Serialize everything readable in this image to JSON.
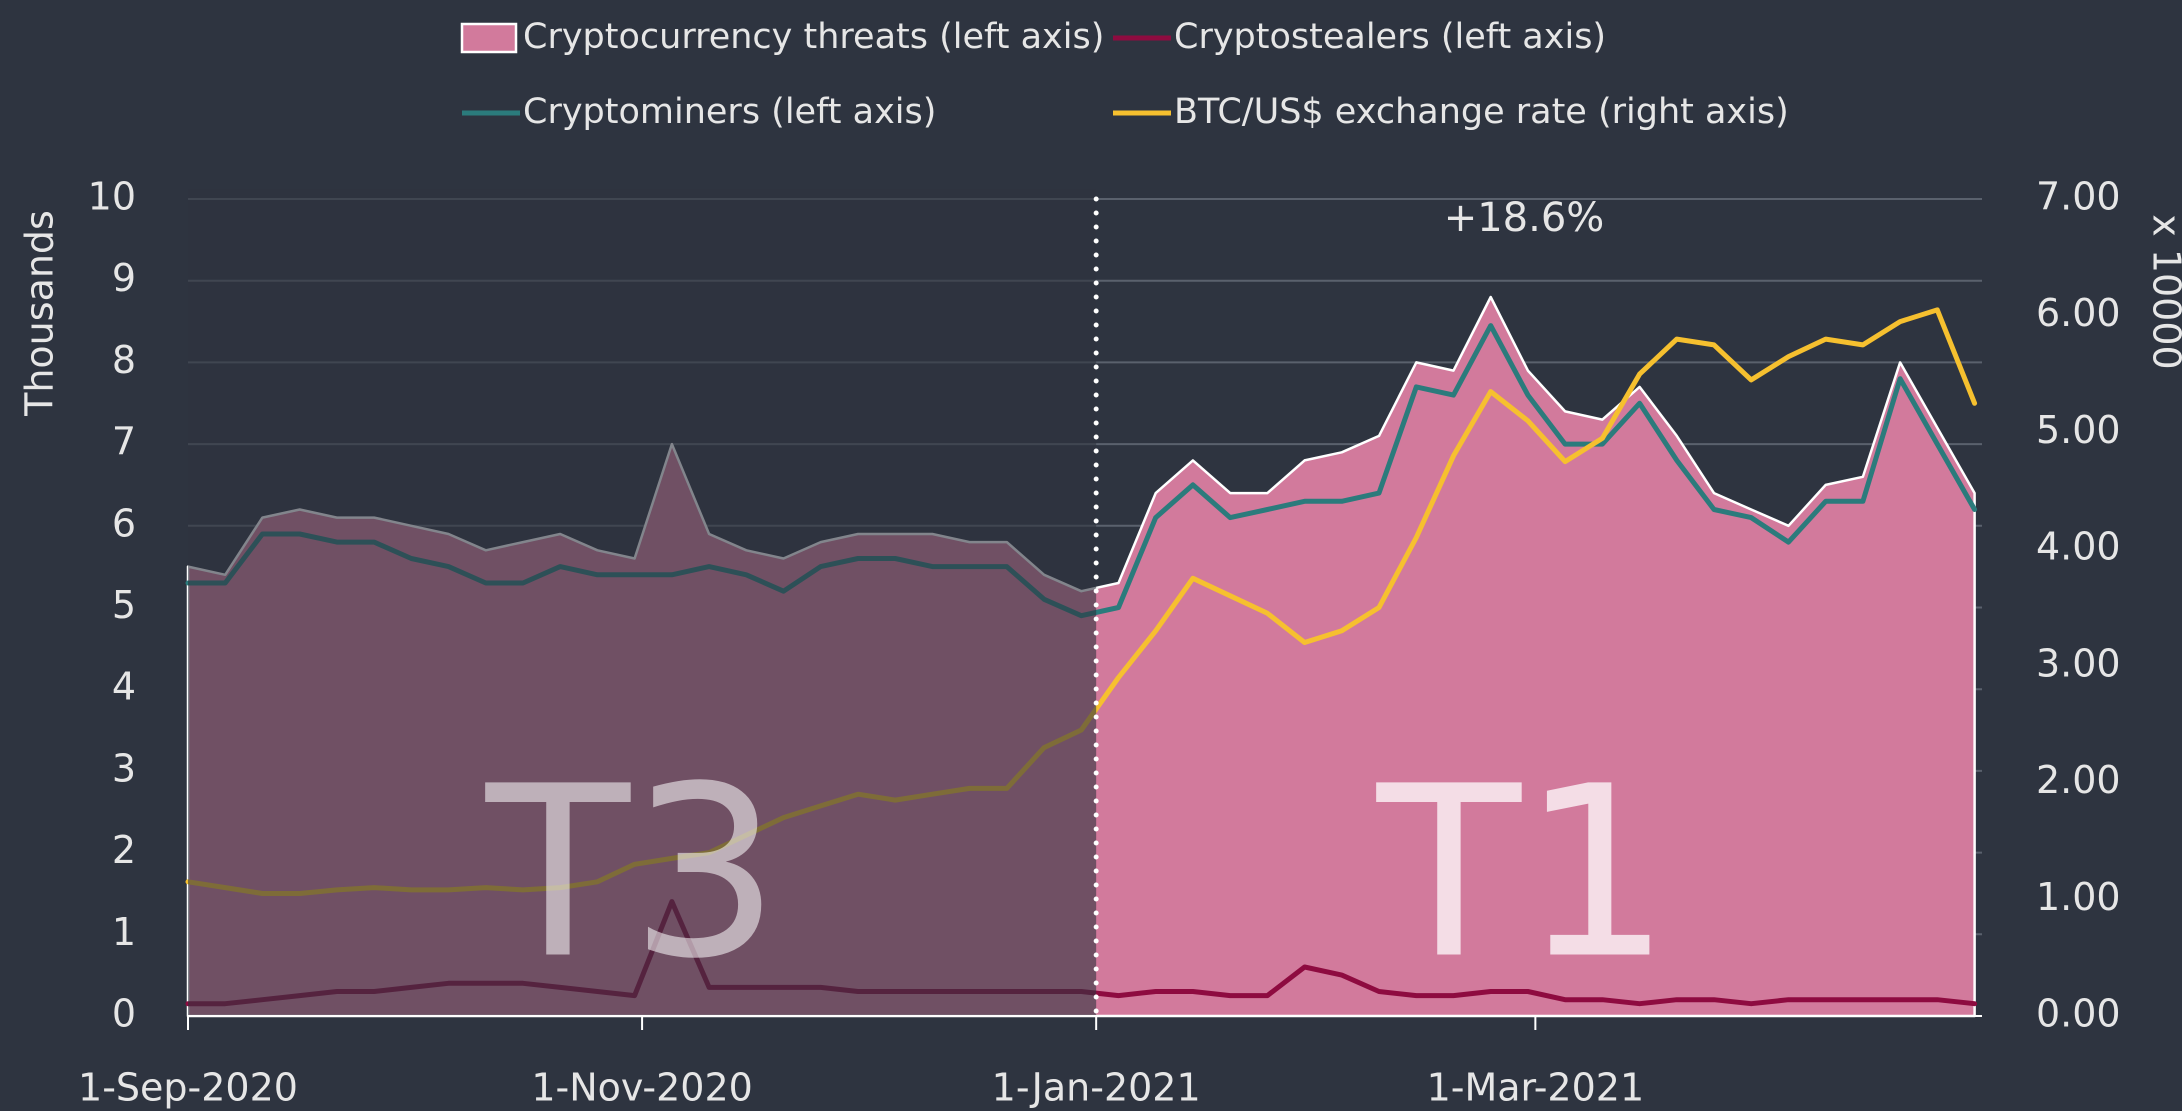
{
  "chart_data": {
    "type": "line",
    "x": [
      "2020-09-01",
      "2020-09-06",
      "2020-09-11",
      "2020-09-16",
      "2020-09-21",
      "2020-09-26",
      "2020-10-01",
      "2020-10-06",
      "2020-10-11",
      "2020-10-16",
      "2020-10-21",
      "2020-10-26",
      "2020-10-31",
      "2020-11-05",
      "2020-11-10",
      "2020-11-15",
      "2020-11-20",
      "2020-11-25",
      "2020-11-30",
      "2020-12-05",
      "2020-12-10",
      "2020-12-15",
      "2020-12-20",
      "2020-12-25",
      "2020-12-30",
      "2021-01-04",
      "2021-01-09",
      "2021-01-14",
      "2021-01-19",
      "2021-01-24",
      "2021-01-29",
      "2021-02-03",
      "2021-02-08",
      "2021-02-13",
      "2021-02-18",
      "2021-02-23",
      "2021-02-28",
      "2021-03-05",
      "2021-03-10",
      "2021-03-15",
      "2021-03-20",
      "2021-03-25",
      "2021-03-30",
      "2021-04-04",
      "2021-04-09",
      "2021-04-14",
      "2021-04-19",
      "2021-04-24",
      "2021-04-29"
    ],
    "series": [
      {
        "name": "Cryptocurrency threats (left axis)",
        "type": "area",
        "color": "#d27a9c",
        "values": [
          5.5,
          5.4,
          6.1,
          6.2,
          6.1,
          6.1,
          6.0,
          5.9,
          5.7,
          5.8,
          5.9,
          5.7,
          5.6,
          7.0,
          5.9,
          5.7,
          5.6,
          5.8,
          5.9,
          5.9,
          5.9,
          5.8,
          5.8,
          5.4,
          5.2,
          5.3,
          6.4,
          6.8,
          6.4,
          6.4,
          6.8,
          6.9,
          7.1,
          8.0,
          7.9,
          8.8,
          7.9,
          7.4,
          7.3,
          7.7,
          7.1,
          6.4,
          6.2,
          6.0,
          6.5,
          6.6,
          8.0,
          7.2,
          6.4
        ]
      },
      {
        "name": "Cryptostealers (left axis)",
        "type": "line",
        "color": "#8e0b40",
        "values": [
          0.15,
          0.15,
          0.2,
          0.25,
          0.3,
          0.3,
          0.35,
          0.4,
          0.4,
          0.4,
          0.35,
          0.3,
          0.25,
          1.4,
          0.35,
          0.35,
          0.35,
          0.35,
          0.3,
          0.3,
          0.3,
          0.3,
          0.3,
          0.3,
          0.3,
          0.25,
          0.3,
          0.3,
          0.25,
          0.25,
          0.6,
          0.5,
          0.3,
          0.25,
          0.25,
          0.3,
          0.3,
          0.2,
          0.2,
          0.15,
          0.2,
          0.2,
          0.15,
          0.2,
          0.2,
          0.2,
          0.2,
          0.2,
          0.15
        ]
      },
      {
        "name": "Cryptominers (left axis)",
        "type": "line",
        "color": "#2b7b7c",
        "values": [
          5.3,
          5.3,
          5.9,
          5.9,
          5.8,
          5.8,
          5.6,
          5.5,
          5.3,
          5.3,
          5.5,
          5.4,
          5.4,
          5.4,
          5.5,
          5.4,
          5.2,
          5.5,
          5.6,
          5.6,
          5.5,
          5.5,
          5.5,
          5.1,
          4.9,
          5.0,
          6.1,
          6.5,
          6.1,
          6.2,
          6.3,
          6.3,
          6.4,
          7.7,
          7.6,
          8.45,
          7.6,
          7.0,
          7.0,
          7.5,
          6.8,
          6.2,
          6.1,
          5.8,
          6.3,
          6.3,
          7.8,
          7.0,
          6.2
        ]
      },
      {
        "name": "BTC/US$ exchange rate (right axis)",
        "type": "line",
        "axis": "y2",
        "color": "#f6c02f",
        "values": [
          1.15,
          1.1,
          1.05,
          1.05,
          1.08,
          1.1,
          1.08,
          1.08,
          1.1,
          1.08,
          1.1,
          1.15,
          1.3,
          1.35,
          1.4,
          1.55,
          1.7,
          1.8,
          1.9,
          1.85,
          1.9,
          1.95,
          1.95,
          2.3,
          2.45,
          2.9,
          3.3,
          3.75,
          3.6,
          3.45,
          3.2,
          3.3,
          3.5,
          4.1,
          4.8,
          5.35,
          5.1,
          4.75,
          4.95,
          5.5,
          5.8,
          5.75,
          5.45,
          5.65,
          5.8,
          5.75,
          5.95,
          6.05,
          5.25
        ]
      }
    ],
    "xlim": [
      "2020-09-01",
      "2021-04-30"
    ],
    "xticks": [
      {
        "value": "2020-09-01",
        "label": "1-Sep-2020"
      },
      {
        "value": "2020-11-01",
        "label": "1-Nov-2020"
      },
      {
        "value": "2021-01-01",
        "label": "1-Jan-2021"
      },
      {
        "value": "2021-03-01",
        "label": "1-Mar-2021"
      }
    ],
    "ylim": [
      0,
      10
    ],
    "yticks": [
      0,
      1,
      2,
      3,
      4,
      5,
      6,
      7,
      8,
      9,
      10
    ],
    "y2lim": [
      0,
      7
    ],
    "y2ticks": [
      {
        "value": 0,
        "label": "0.00"
      },
      {
        "value": 1,
        "label": "1.00"
      },
      {
        "value": 2,
        "label": "2.00"
      },
      {
        "value": 3,
        "label": "3.00"
      },
      {
        "value": 4,
        "label": "4.00"
      },
      {
        "value": 5,
        "label": "5.00"
      },
      {
        "value": 6,
        "label": "6.00"
      },
      {
        "value": 7,
        "label": "7.00"
      }
    ],
    "ylabel": "Thousands",
    "y2label": "x 10000",
    "grid": true,
    "legend": "top",
    "annotation": "+18.6%",
    "periods": [
      {
        "label": "T3",
        "start": "2020-09-01",
        "end": "2021-01-01"
      },
      {
        "label": "T1",
        "start": "2021-01-01",
        "end": "2021-04-30"
      }
    ]
  }
}
